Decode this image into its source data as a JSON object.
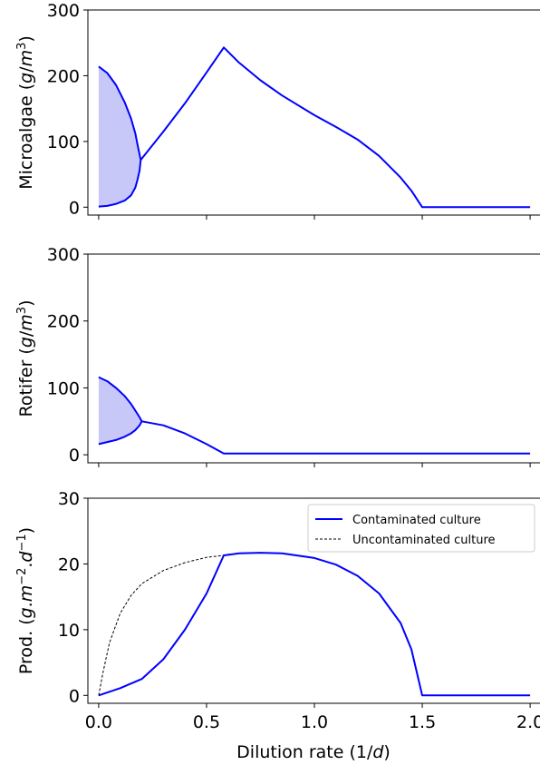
{
  "chart_data": [
    {
      "type": "line",
      "ylabel": "Microalgae (g/m³)",
      "ylabel_parts": [
        "Microalgae (",
        "g",
        "/",
        "m",
        "3",
        ")"
      ],
      "xlim": [
        -0.05,
        2.05
      ],
      "ylim": [
        -12,
        300
      ],
      "xticks": [
        0,
        0.5,
        1,
        1.5,
        2
      ],
      "yticks": [
        0,
        100,
        200,
        300
      ],
      "ytick_labels": [
        "0",
        "100",
        "200",
        "300"
      ],
      "color": "#0000ff",
      "shaded_region": {
        "upper": [
          [
            0,
            214
          ],
          [
            0.04,
            204
          ],
          [
            0.08,
            186
          ],
          [
            0.12,
            160
          ],
          [
            0.15,
            135
          ],
          [
            0.17,
            112
          ],
          [
            0.18,
            95
          ],
          [
            0.19,
            80
          ],
          [
            0.195,
            72
          ]
        ],
        "lower": [
          [
            0,
            1
          ],
          [
            0.04,
            2
          ],
          [
            0.08,
            5
          ],
          [
            0.12,
            10
          ],
          [
            0.15,
            18
          ],
          [
            0.17,
            30
          ],
          [
            0.18,
            42
          ],
          [
            0.19,
            56
          ],
          [
            0.195,
            72
          ]
        ],
        "color": "#c8c8f8"
      },
      "series": [
        {
          "values": [
            [
              0,
              214
            ],
            [
              0.04,
              204
            ],
            [
              0.08,
              186
            ],
            [
              0.12,
              160
            ],
            [
              0.15,
              135
            ],
            [
              0.17,
              112
            ],
            [
              0.18,
              95
            ],
            [
              0.19,
              80
            ],
            [
              0.195,
              72
            ]
          ]
        },
        {
          "values": [
            [
              0,
              1
            ],
            [
              0.04,
              2
            ],
            [
              0.08,
              5
            ],
            [
              0.12,
              10
            ],
            [
              0.15,
              18
            ],
            [
              0.17,
              30
            ],
            [
              0.18,
              42
            ],
            [
              0.19,
              56
            ],
            [
              0.195,
              72
            ]
          ]
        },
        {
          "values": [
            [
              0.195,
              72
            ],
            [
              0.3,
              115
            ],
            [
              0.4,
              158
            ],
            [
              0.5,
              205
            ],
            [
              0.58,
              243
            ],
            [
              0.65,
              220
            ],
            [
              0.75,
              193
            ],
            [
              0.85,
              170
            ],
            [
              1.0,
              140
            ],
            [
              1.1,
              122
            ],
            [
              1.2,
              103
            ],
            [
              1.3,
              78
            ],
            [
              1.4,
              45
            ],
            [
              1.45,
              25
            ],
            [
              1.5,
              0
            ],
            [
              2.0,
              0
            ]
          ]
        }
      ]
    },
    {
      "type": "line",
      "ylabel": "Rotifer (g/m³)",
      "ylabel_parts": [
        "Rotifer (",
        "g",
        "/",
        "m",
        "3",
        ")"
      ],
      "xlim": [
        -0.05,
        2.05
      ],
      "ylim": [
        -12,
        300
      ],
      "xticks": [
        0,
        0.5,
        1,
        1.5,
        2
      ],
      "yticks": [
        0,
        100,
        200,
        300
      ],
      "ytick_labels": [
        "0",
        "100",
        "200",
        "300"
      ],
      "color": "#0000ff",
      "shaded_region": {
        "upper": [
          [
            0,
            116
          ],
          [
            0.04,
            110
          ],
          [
            0.08,
            100
          ],
          [
            0.12,
            88
          ],
          [
            0.15,
            76
          ],
          [
            0.17,
            66
          ],
          [
            0.19,
            56
          ],
          [
            0.2,
            50
          ]
        ],
        "lower": [
          [
            0,
            16
          ],
          [
            0.04,
            19
          ],
          [
            0.08,
            22
          ],
          [
            0.12,
            27
          ],
          [
            0.15,
            32
          ],
          [
            0.17,
            37
          ],
          [
            0.19,
            44
          ],
          [
            0.2,
            50
          ]
        ],
        "color": "#c8c8f8"
      },
      "series": [
        {
          "values": [
            [
              0,
              116
            ],
            [
              0.04,
              110
            ],
            [
              0.08,
              100
            ],
            [
              0.12,
              88
            ],
            [
              0.15,
              76
            ],
            [
              0.17,
              66
            ],
            [
              0.19,
              56
            ],
            [
              0.2,
              50
            ]
          ]
        },
        {
          "values": [
            [
              0,
              16
            ],
            [
              0.04,
              19
            ],
            [
              0.08,
              22
            ],
            [
              0.12,
              27
            ],
            [
              0.15,
              32
            ],
            [
              0.17,
              37
            ],
            [
              0.19,
              44
            ],
            [
              0.2,
              50
            ]
          ]
        },
        {
          "values": [
            [
              0.2,
              50
            ],
            [
              0.3,
              44
            ],
            [
              0.4,
              32
            ],
            [
              0.5,
              16
            ],
            [
              0.58,
              2
            ],
            [
              2.0,
              2
            ]
          ]
        }
      ]
    },
    {
      "type": "line",
      "xlabel": "Dilution rate (1/d)",
      "xlabel_parts": [
        "Dilution rate (1/",
        "d",
        ")"
      ],
      "ylabel": "Prod. (g.m⁻².d⁻¹)",
      "ylabel_parts": [
        "Prod. (",
        "g",
        ".",
        "m",
        "−2",
        ".",
        "d",
        "−1",
        ")"
      ],
      "xlim": [
        -0.05,
        2.05
      ],
      "ylim": [
        -1.2,
        30
      ],
      "xticks": [
        0,
        0.5,
        1,
        1.5,
        2
      ],
      "xtick_labels": [
        "0.0",
        "0.5",
        "1.0",
        "1.5",
        "2.0"
      ],
      "yticks": [
        0,
        10,
        20,
        30
      ],
      "ytick_labels": [
        "0",
        "10",
        "20",
        "30"
      ],
      "legend": {
        "position": "top-right"
      },
      "series": [
        {
          "name": "Contaminated culture",
          "style": "solid",
          "color": "#0000ff",
          "values": [
            [
              0,
              0
            ],
            [
              0.1,
              1.1
            ],
            [
              0.2,
              2.5
            ],
            [
              0.3,
              5.5
            ],
            [
              0.4,
              10
            ],
            [
              0.5,
              15.5
            ],
            [
              0.58,
              21.3
            ],
            [
              0.65,
              21.6
            ],
            [
              0.75,
              21.7
            ],
            [
              0.85,
              21.6
            ],
            [
              1.0,
              20.9
            ],
            [
              1.1,
              19.9
            ],
            [
              1.2,
              18.2
            ],
            [
              1.3,
              15.5
            ],
            [
              1.4,
              11
            ],
            [
              1.45,
              7
            ],
            [
              1.5,
              0
            ],
            [
              2.0,
              0
            ]
          ]
        },
        {
          "name": "Uncontaminated culture",
          "style": "dashed",
          "color": "#000000",
          "values": [
            [
              0,
              0
            ],
            [
              0.02,
              3.5
            ],
            [
              0.05,
              8
            ],
            [
              0.1,
              12.5
            ],
            [
              0.15,
              15.2
            ],
            [
              0.2,
              17
            ],
            [
              0.3,
              19
            ],
            [
              0.4,
              20.2
            ],
            [
              0.5,
              21
            ],
            [
              0.58,
              21.3
            ]
          ]
        }
      ]
    }
  ]
}
